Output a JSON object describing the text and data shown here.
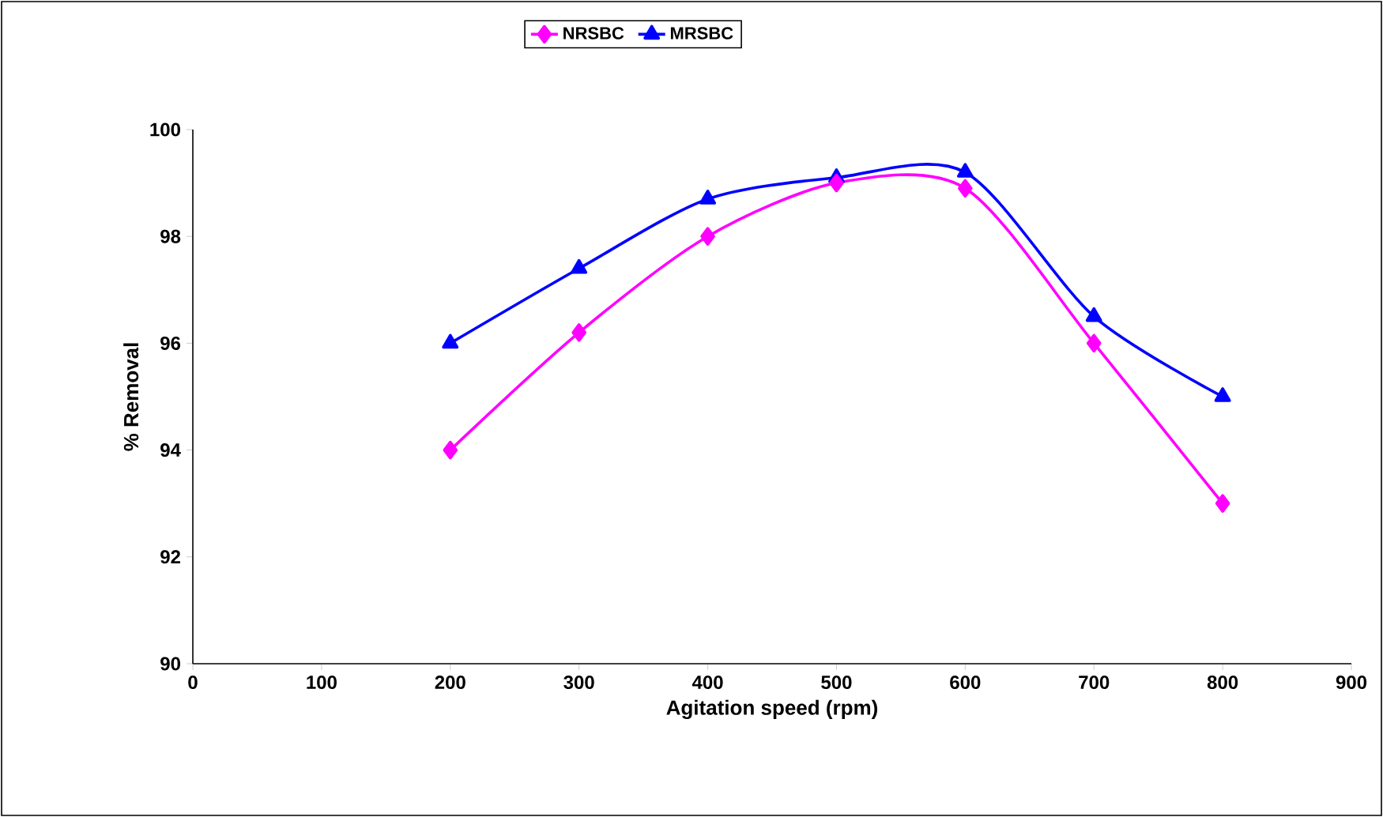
{
  "chart_data": {
    "type": "line",
    "xlabel": "Agitation speed (rpm)",
    "ylabel": "% Removal",
    "x": [
      200,
      300,
      400,
      500,
      600,
      700,
      800
    ],
    "series": [
      {
        "name": "NRSBC",
        "color": "#ff00ff",
        "marker": "diamond",
        "values": [
          94,
          96.2,
          98,
          99,
          98.9,
          96,
          93
        ]
      },
      {
        "name": "MRSBC",
        "color": "#0000ff",
        "marker": "triangle",
        "values": [
          96,
          97.4,
          98.7,
          99.1,
          99.2,
          96.5,
          95
        ]
      }
    ],
    "xlim": [
      0,
      900
    ],
    "xticks": [
      0,
      100,
      200,
      300,
      400,
      500,
      600,
      700,
      800,
      900
    ],
    "ylim": [
      90,
      100
    ],
    "yticks": [
      90,
      92,
      94,
      96,
      98,
      100
    ],
    "grid": false,
    "legend": "top",
    "line_style": "solid"
  }
}
